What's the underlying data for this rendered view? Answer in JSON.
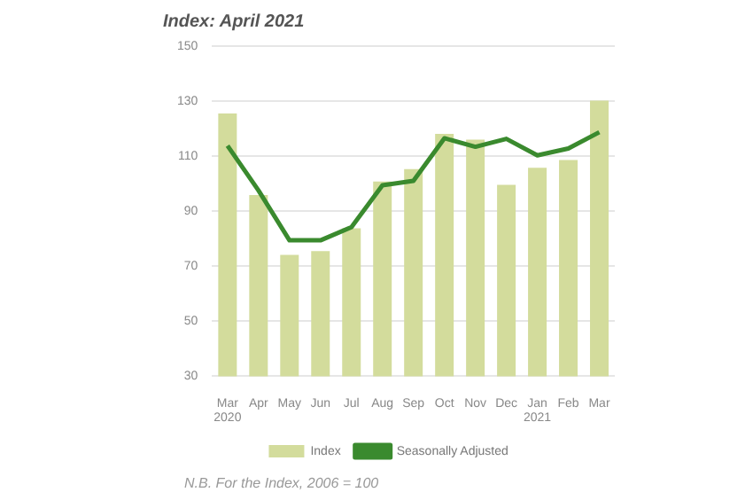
{
  "chart_data": {
    "type": "bar",
    "title": "Index: April 2021",
    "categories": [
      "Mar 2020",
      "Apr",
      "May",
      "Jun",
      "Jul",
      "Aug",
      "Sep",
      "Oct",
      "Nov",
      "Dec",
      "Jan 2021",
      "Feb",
      "Mar"
    ],
    "series": [
      {
        "name": "Index",
        "color": "#d3dc9c",
        "values": [
          125.5,
          95.9,
          74.1,
          75.5,
          83.8,
          100.8,
          105.3,
          118.1,
          116,
          99.6,
          105.8,
          108.6,
          130.2
        ]
      },
      {
        "name": "Seasonally Adjusted",
        "type": "line",
        "color": "#3a8a2e",
        "values": [
          113.8,
          97.5,
          79.4,
          79.4,
          84.2,
          99.4,
          101,
          116.5,
          113.4,
          116.3,
          110.3,
          112.8,
          118.7
        ]
      }
    ],
    "ylim": [
      30,
      150
    ],
    "yticks": [
      30,
      50,
      70,
      90,
      110,
      130,
      150
    ],
    "grid": "y",
    "legend": "bottom",
    "marker": "none",
    "annotations": [
      "N.B. For the Index, 2006 = 100"
    ]
  }
}
